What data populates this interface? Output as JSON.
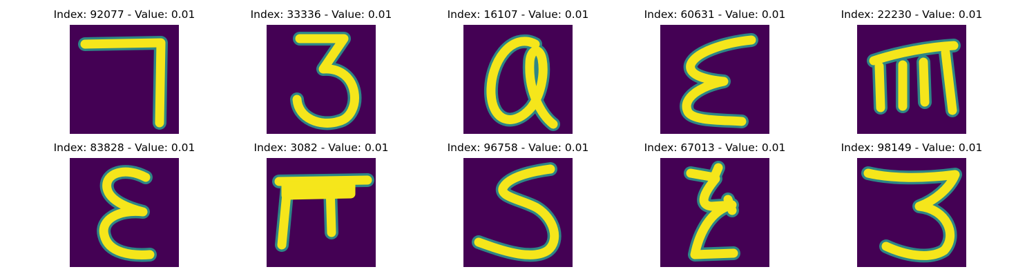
{
  "colors": {
    "background": "#440154",
    "stroke": "#f5e61b",
    "edge": "#2a9d8f"
  },
  "panels": [
    {
      "title": "Index: 92077 - Value: 0.01",
      "glyph": "7"
    },
    {
      "title": "Index: 33336 - Value: 0.01",
      "glyph": "3"
    },
    {
      "title": "Index: 16107 - Value: 0.01",
      "glyph": "a"
    },
    {
      "title": "Index: 60631 - Value: 0.01",
      "glyph": "ε"
    },
    {
      "title": "Index: 22230 - Value: 0.01",
      "glyph": "m"
    },
    {
      "title": "Index: 83828 - Value: 0.01",
      "glyph": "ε"
    },
    {
      "title": "Index: 3082 - Value: 0.01",
      "glyph": "π"
    },
    {
      "title": "Index: 96758 - Value: 0.01",
      "glyph": "5"
    },
    {
      "title": "Index: 67013 - Value: 0.01",
      "glyph": "ξ"
    },
    {
      "title": "Index: 98149 - Value: 0.01",
      "glyph": "3"
    }
  ]
}
